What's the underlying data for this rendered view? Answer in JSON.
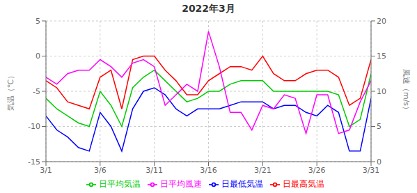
{
  "chart_data": {
    "type": "line",
    "title": "2022年3月",
    "ylabel": "気温（℃）",
    "y2label": "風速（m/s）",
    "x": [
      1,
      2,
      3,
      4,
      5,
      6,
      7,
      8,
      9,
      10,
      11,
      12,
      13,
      14,
      15,
      16,
      17,
      18,
      19,
      20,
      21,
      22,
      23,
      24,
      25,
      26,
      27,
      28,
      29,
      30,
      31
    ],
    "xlim": [
      1,
      31
    ],
    "xticks": [
      {
        "value": 1,
        "label": "3/1"
      },
      {
        "value": 6,
        "label": "3/6"
      },
      {
        "value": 11,
        "label": "3/11"
      },
      {
        "value": 16,
        "label": "3/16"
      },
      {
        "value": 21,
        "label": "3/21"
      },
      {
        "value": 26,
        "label": "3/26"
      },
      {
        "value": 31,
        "label": "3/31"
      }
    ],
    "ylim": [
      -15,
      5
    ],
    "yticks": [
      -15,
      -10,
      -5,
      0,
      5
    ],
    "y2lim": [
      0,
      20
    ],
    "y2ticks": [
      0,
      5,
      10,
      15,
      20
    ],
    "grid": true,
    "legend": "bottom",
    "series": [
      {
        "name": "日平均気温",
        "color": "#00cc00",
        "values": [
          -6.0,
          -7.5,
          -8.5,
          -9.5,
          -10.0,
          -5.0,
          -7.0,
          -10.0,
          -4.5,
          -3.0,
          -2.0,
          -3.5,
          -5.0,
          -6.5,
          -6.0,
          -5.0,
          -5.0,
          -4.0,
          -3.5,
          -3.5,
          -3.5,
          -5.0,
          -5.0,
          -5.0,
          -5.0,
          -5.0,
          -5.0,
          -5.5,
          -10.0,
          -9.0,
          -2.5
        ]
      },
      {
        "name": "日最高気温",
        "color": "#ff0000",
        "values": [
          -3.5,
          -4.5,
          -6.5,
          -7.0,
          -7.5,
          -3.0,
          -2.0,
          -7.5,
          -0.5,
          0.0,
          0.0,
          -2.0,
          -3.5,
          -5.5,
          -5.5,
          -3.5,
          -2.5,
          -1.5,
          -1.5,
          -2.0,
          0.0,
          -2.5,
          -3.5,
          -3.5,
          -2.5,
          -2.0,
          -2.0,
          -3.0,
          -7.0,
          -6.0,
          -0.5
        ]
      },
      {
        "name": "日最低気温",
        "color": "#0000ff",
        "values": [
          -8.5,
          -10.5,
          -11.5,
          -13.0,
          -13.5,
          -8.0,
          -10.0,
          -13.5,
          -7.5,
          -5.0,
          -4.5,
          -5.5,
          -7.5,
          -8.5,
          -7.5,
          -7.5,
          -7.5,
          -7.0,
          -6.5,
          -6.5,
          -6.5,
          -7.5,
          -7.0,
          -7.0,
          -8.0,
          -8.5,
          -7.0,
          -8.0,
          -13.5,
          -13.5,
          -6.0
        ]
      },
      {
        "name": "日平均風速",
        "color": "#ff00ff",
        "axis": "y2",
        "values": [
          12.0,
          11.0,
          12.5,
          13.0,
          13.0,
          14.5,
          13.5,
          12.0,
          14.0,
          14.5,
          13.5,
          8.0,
          9.5,
          11.0,
          10.0,
          18.5,
          13.5,
          7.0,
          7.0,
          4.5,
          8.0,
          7.5,
          9.5,
          9.0,
          4.0,
          9.5,
          9.5,
          4.0,
          4.5,
          8.5,
          11.5
        ]
      }
    ]
  }
}
